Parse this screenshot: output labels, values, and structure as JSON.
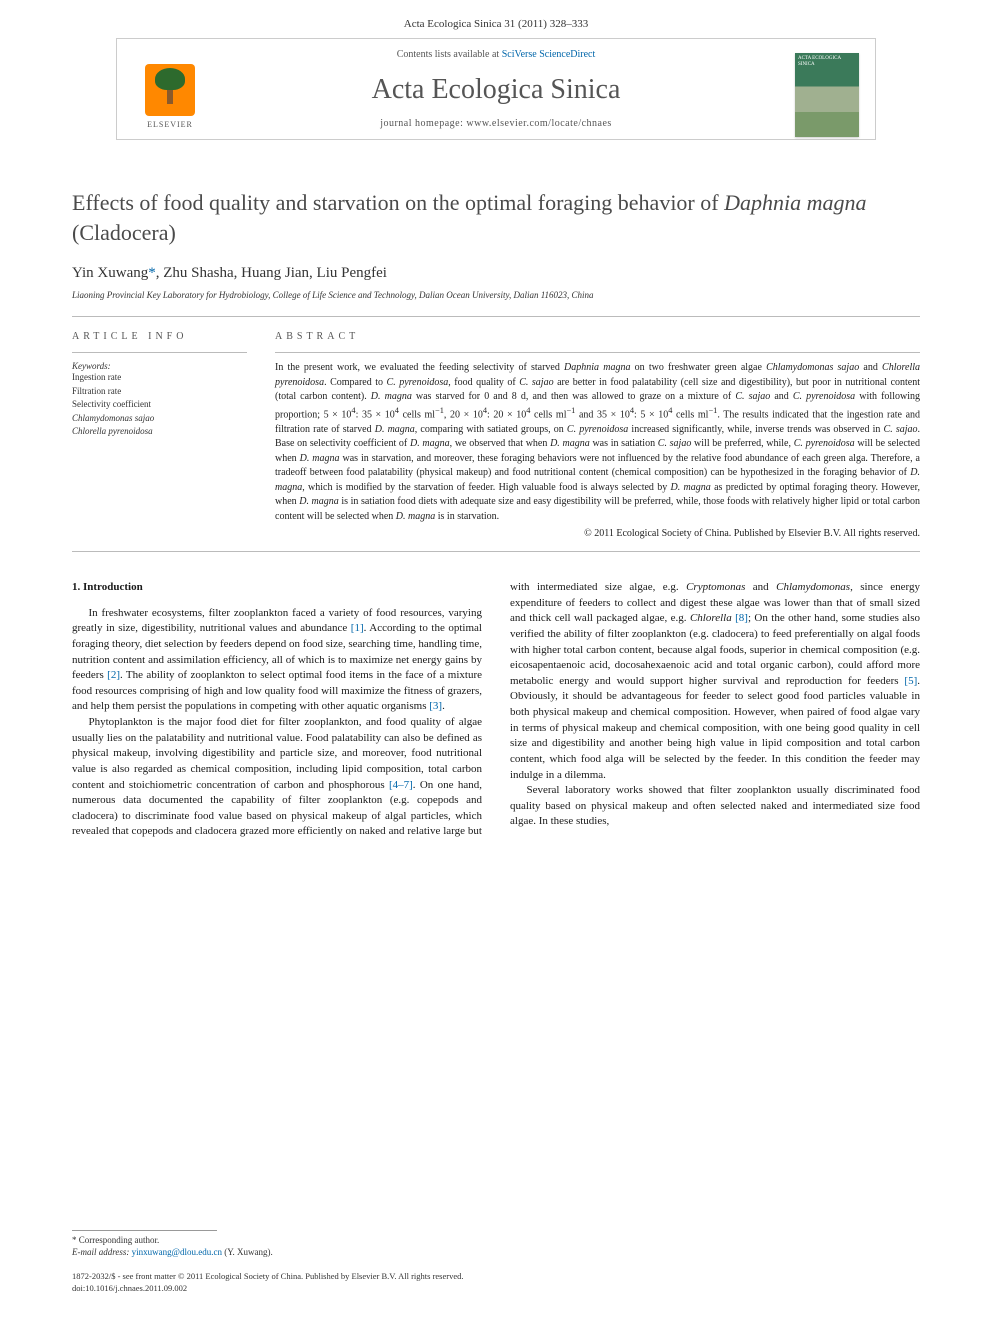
{
  "header": {
    "citation": "Acta Ecologica Sinica 31 (2011) 328–333",
    "contents_prefix": "Contents lists available at ",
    "contents_link": "SciVerse ScienceDirect",
    "journal_name": "Acta Ecologica Sinica",
    "homepage_label": "journal homepage: ",
    "homepage_url": "www.elsevier.com/locate/chnaes",
    "elsevier_label": "ELSEVIER",
    "cover_text": "ACTA ECOLOGICA SINICA"
  },
  "article": {
    "title_pre": "Effects of food quality and starvation on the optimal foraging behavior of ",
    "title_em": "Daphnia magna",
    "title_post": " (Cladocera)",
    "authors_html": "Yin Xuwang",
    "authors_mark": "*",
    "authors_rest": ", Zhu Shasha, Huang Jian, Liu Pengfei",
    "affiliation": "Liaoning Provincial Key Laboratory for Hydrobiology, College of Life Science and Technology, Dalian Ocean University, Dalian 116023, China"
  },
  "info": {
    "head": "ARTICLE INFO",
    "keywords_label": "Keywords:",
    "keywords": [
      "Ingestion rate",
      "Filtration rate",
      "Selectivity coefficient",
      "<em>Chlamydomonas sajao</em>",
      "<em>Chlorella pyrenoidosa</em>"
    ]
  },
  "abstract": {
    "head": "ABSTRACT",
    "text": "In the present work, we evaluated the feeding selectivity of starved <em>Daphnia magna</em> on two freshwater green algae <em>Chlamydomonas sajao</em> and <em>Chlorella pyrenoidosa</em>. Compared to <em>C. pyrenoidosa</em>, food quality of <em>C. sajao</em> are better in food palatability (cell size and digestibility), but poor in nutritional content (total carbon content). <em>D. magna</em> was starved for 0 and 8 d, and then was allowed to graze on a mixture of <em>C. sajao</em> and <em>C. pyrenoidosa</em> with following proportion; 5 × 10<sup>4</sup>: 35 × 10<sup>4</sup> cells ml<sup>−1</sup>, 20 × 10<sup>4</sup>: 20 × 10<sup>4</sup> cells ml<sup>−1</sup> and 35 × 10<sup>4</sup>: 5 × 10<sup>4</sup> cells ml<sup>−1</sup>. The results indicated that the ingestion rate and filtration rate of starved <em>D. magna</em>, comparing with satiated groups, on <em>C. pyrenoidosa</em> increased significantly, while, inverse trends was observed in <em>C. sajao</em>. Base on selectivity coefficient of <em>D. magna</em>, we observed that when <em>D. magna</em> was in satiation <em>C. sajao</em> will be preferred, while, <em>C. pyrenoidosa</em> will be selected when <em>D. magna</em> was in starvation, and moreover, these foraging behaviors were not influenced by the relative food abundance of each green alga. Therefore, a tradeoff between food palatability (physical makeup) and food nutritional content (chemical composition) can be hypothesized in the foraging behavior of <em>D. magna</em>, which is modified by the starvation of feeder. High valuable food is always selected by <em>D. magna</em> as predicted by optimal foraging theory. However, when <em>D. magna</em> is in satiation food diets with adequate size and easy digestibility will be preferred, while, those foods with relatively higher lipid or total carbon content will be selected when <em>D. magna</em> is in starvation.",
    "copyright": "© 2011 Ecological Society of China. Published by Elsevier B.V. All rights reserved."
  },
  "body": {
    "section_head": "1. Introduction",
    "p1": "In freshwater ecosystems, filter zooplankton faced a variety of food resources, varying greatly in size, digestibility, nutritional values and abundance <span class='ref'>[1]</span>. According to the optimal foraging theory, diet selection by feeders depend on food size, searching time, handling time, nutrition content and assimilation efficiency, all of which is to maximize net energy gains by feeders <span class='ref'>[2]</span>. The ability of zooplankton to select optimal food items in the face of a mixture food resources comprising of high and low quality food will maximize the fitness of grazers, and help them persist the populations in competing with other aquatic organisms <span class='ref'>[3]</span>.",
    "p2": "Phytoplankton is the major food diet for filter zooplankton, and food quality of algae usually lies on the palatability and nutritional value. Food palatability can also be defined as physical makeup, involving digestibility and particle size, and moreover, food nutritional value is also regarded as chemical composition, including lipid composition, total carbon content and stoichiometric concentration of carbon and phosphorous <span class='ref'>[4–7]</span>. On one hand, numerous data documented the capability of filter zooplankton (e.g. copepods and cladocera) to discriminate food value based on physical makeup of algal particles, which revealed that copepods and cladocera grazed more efficiently on naked and relative large but with intermediated size algae, e.g. <em>Cryptomonas</em> and <em>Chlamydomonas</em>, since energy expenditure of feeders to collect and digest these algae was lower than that of small sized and thick cell wall packaged algae, e.g. <em>Chlorella</em> <span class='ref'>[8]</span>; On the other hand, some studies also verified the ability of filter zooplankton (e.g. cladocera) to feed preferentially on algal foods with higher total carbon content, because algal foods, superior in chemical composition (e.g. eicosapentaenoic acid, docosahexaenoic acid and total organic carbon), could afford more metabolic energy and would support higher survival and reproduction for feeders <span class='ref'>[5]</span>. Obviously, it should be advantageous for feeder to select good food particles valuable in both physical makeup and chemical composition. However, when paired of food algae vary in terms of physical makeup and chemical composition, with one being good quality in cell size and digestibility and another being high value in lipid composition and total carbon content, which food alga will be selected by the feeder. In this condition the feeder may indulge in a dilemma.",
    "p3": "Several laboratory works showed that filter zooplankton usually discriminated food quality based on physical makeup and often selected naked and intermediated size food algae. In these studies,"
  },
  "footer": {
    "corr_label": "* Corresponding author.",
    "email_label": "E-mail address: ",
    "email": "yinxuwang@dlou.edu.cn",
    "email_who": " (Y. Xuwang).",
    "issn_line": "1872-2032/$ - see front matter © 2011 Ecological Society of China. Published by Elsevier B.V. All rights reserved.",
    "doi_line": "doi:10.1016/j.chnaes.2011.09.002"
  },
  "colors": {
    "link": "#0066aa",
    "text": "#1a1a1a",
    "muted": "#555555",
    "rule": "#bbbbbb"
  }
}
